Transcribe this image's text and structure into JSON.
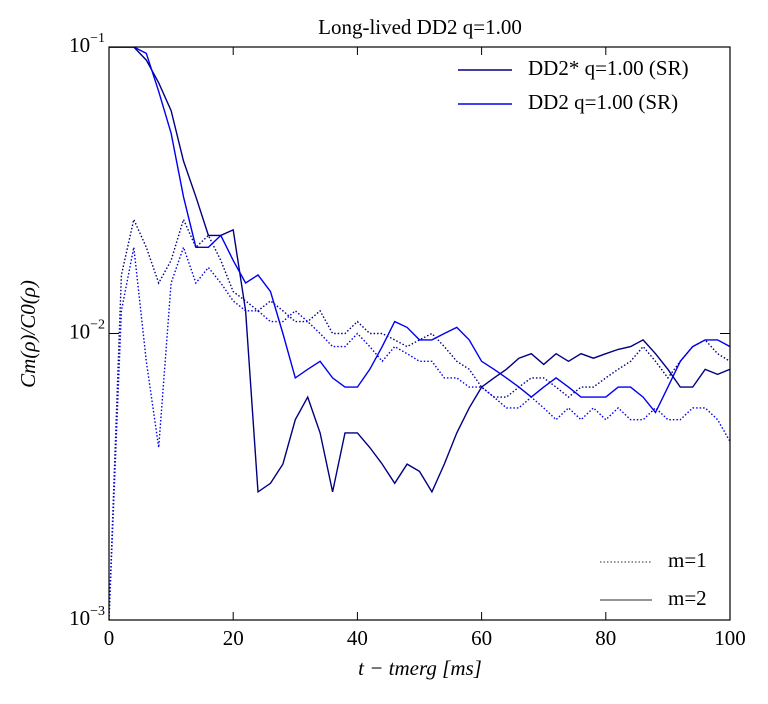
{
  "chart_data": {
    "type": "line",
    "title": "Long-lived DD2 q=1.00",
    "x_label": "t − tmerg [ms]",
    "y_label": "Cm(ρ)/C0(ρ)",
    "log_y": true,
    "xlim": [
      0,
      100
    ],
    "xticks": [
      0,
      20,
      40,
      60,
      80,
      100
    ],
    "ylim": [
      0.001,
      0.1
    ],
    "yticks": [
      {
        "value": 0.001,
        "label": "10−3"
      },
      {
        "value": 0.01,
        "label": "10−2"
      },
      {
        "value": 0.1,
        "label": "10−1"
      }
    ],
    "legend": "upper right",
    "style_legend_position": "lower right",
    "styles": [
      {
        "label": "m=1",
        "dash": "dotted",
        "key": "m1"
      },
      {
        "label": "m=2",
        "dash": "solid",
        "key": "m2"
      }
    ],
    "x": [
      0,
      2,
      4,
      6,
      8,
      10,
      12,
      14,
      16,
      18,
      20,
      22,
      24,
      26,
      28,
      30,
      32,
      34,
      36,
      38,
      40,
      42,
      44,
      46,
      48,
      50,
      52,
      54,
      56,
      58,
      60,
      62,
      64,
      66,
      68,
      70,
      72,
      74,
      76,
      78,
      80,
      82,
      84,
      86,
      88,
      90,
      92,
      94,
      96,
      98,
      100
    ],
    "series": [
      {
        "name": "DD2* q=1.00 (SR)",
        "color": "#000080",
        "m2": [
          0.1,
          0.1,
          0.1,
          0.09,
          0.075,
          0.06,
          0.04,
          0.03,
          0.022,
          0.022,
          0.023,
          0.012,
          0.0028,
          0.003,
          0.0035,
          0.005,
          0.006,
          0.0045,
          0.0028,
          0.0045,
          0.0045,
          0.004,
          0.0035,
          0.003,
          0.0035,
          0.0033,
          0.0028,
          0.0035,
          0.0045,
          0.0055,
          0.0065,
          0.007,
          0.0075,
          0.0082,
          0.0085,
          0.0078,
          0.0085,
          0.008,
          0.0085,
          0.0082,
          0.0085,
          0.0088,
          0.009,
          0.0095,
          0.0085,
          0.0075,
          0.0065,
          0.0065,
          0.0075,
          0.0072,
          0.0075
        ],
        "m1": [
          0.001,
          0.016,
          0.025,
          0.02,
          0.015,
          0.018,
          0.025,
          0.02,
          0.022,
          0.018,
          0.014,
          0.013,
          0.012,
          0.013,
          0.012,
          0.011,
          0.011,
          0.012,
          0.01,
          0.01,
          0.011,
          0.01,
          0.01,
          0.0095,
          0.009,
          0.0095,
          0.01,
          0.009,
          0.008,
          0.0075,
          0.0065,
          0.006,
          0.006,
          0.0065,
          0.007,
          0.007,
          0.0065,
          0.006,
          0.0065,
          0.0065,
          0.007,
          0.0075,
          0.008,
          0.009,
          0.008,
          0.007,
          0.008,
          0.009,
          0.0095,
          0.0085,
          0.008
        ]
      },
      {
        "name": "DD2 q=1.00 (SR)",
        "color": "#0000ee",
        "m2": [
          0.1,
          0.1,
          0.1,
          0.095,
          0.07,
          0.05,
          0.03,
          0.02,
          0.02,
          0.022,
          0.018,
          0.015,
          0.016,
          0.014,
          0.01,
          0.007,
          0.0075,
          0.008,
          0.007,
          0.0065,
          0.0065,
          0.0075,
          0.009,
          0.011,
          0.0105,
          0.0095,
          0.0095,
          0.01,
          0.0105,
          0.0095,
          0.008,
          0.0075,
          0.007,
          0.0065,
          0.006,
          0.0065,
          0.007,
          0.0065,
          0.006,
          0.006,
          0.006,
          0.0065,
          0.0065,
          0.006,
          0.0053,
          0.0065,
          0.008,
          0.009,
          0.0095,
          0.0095,
          0.009
        ],
        "m1": [
          0.001,
          0.012,
          0.02,
          0.008,
          0.004,
          0.015,
          0.02,
          0.015,
          0.017,
          0.015,
          0.013,
          0.012,
          0.012,
          0.011,
          0.011,
          0.012,
          0.011,
          0.01,
          0.009,
          0.009,
          0.01,
          0.009,
          0.008,
          0.009,
          0.0085,
          0.008,
          0.008,
          0.007,
          0.007,
          0.0065,
          0.0065,
          0.006,
          0.0055,
          0.0055,
          0.006,
          0.0055,
          0.005,
          0.0055,
          0.005,
          0.0055,
          0.005,
          0.0055,
          0.005,
          0.005,
          0.0055,
          0.005,
          0.005,
          0.0055,
          0.0055,
          0.005,
          0.0042
        ]
      }
    ]
  }
}
